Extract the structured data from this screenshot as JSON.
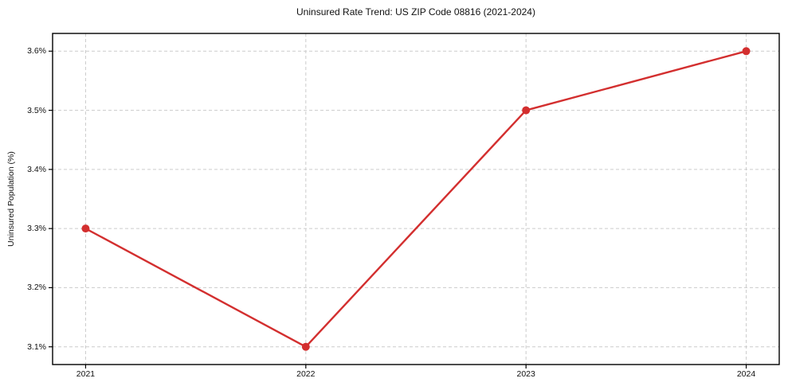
{
  "chart_data": {
    "type": "line",
    "title": "Uninsured Rate Trend: US ZIP Code 08816 (2021-2024)",
    "xlabel": "",
    "ylabel": "Uninsured Population (%)",
    "x": [
      2021,
      2022,
      2023,
      2024
    ],
    "x_tick_labels": [
      "2021",
      "2022",
      "2023",
      "2024"
    ],
    "series": [
      {
        "name": "Uninsured Rate",
        "values": [
          3.3,
          3.1,
          3.5,
          3.6
        ]
      }
    ],
    "y_ticks": [
      3.1,
      3.2,
      3.3,
      3.4,
      3.5,
      3.6
    ],
    "y_tick_labels": [
      "3.1%",
      "3.2%",
      "3.3%",
      "3.4%",
      "3.5%",
      "3.6%"
    ],
    "xlim": [
      2020.85,
      2024.15
    ],
    "ylim": [
      3.07,
      3.63
    ],
    "grid": true,
    "legend": "none",
    "colors": {
      "line": "#d32f2f",
      "marker": "#d32f2f",
      "grid": "#cccccc",
      "frame": "#000000",
      "background": "#ffffff"
    }
  }
}
